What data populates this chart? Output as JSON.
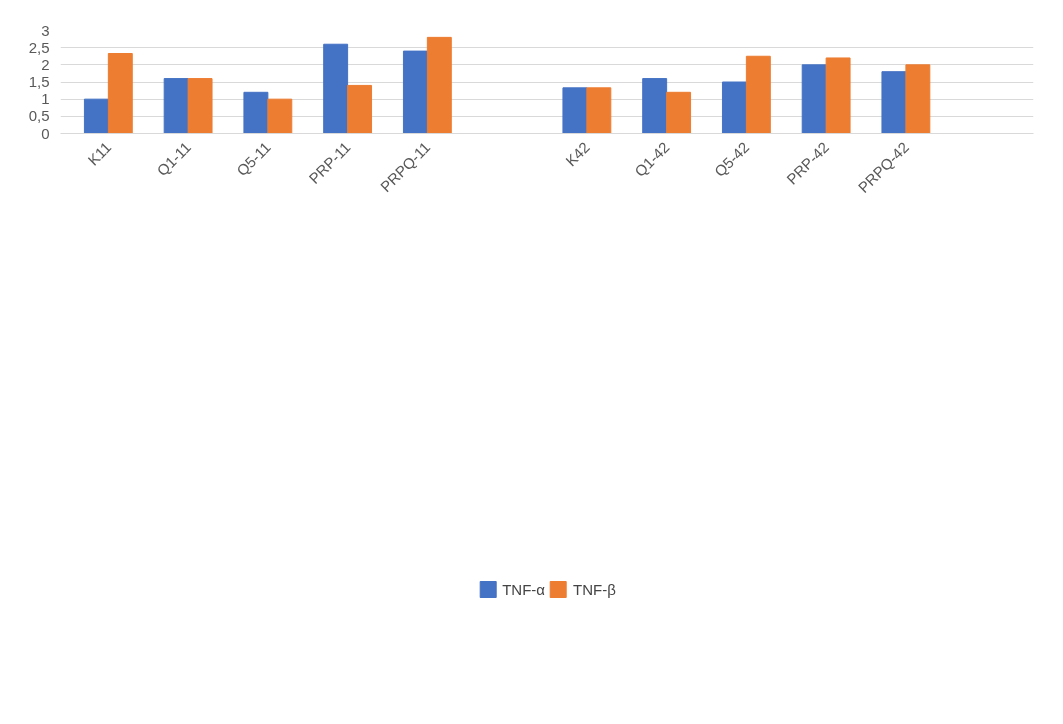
{
  "chart_data": {
    "type": "bar",
    "categories": [
      "K11",
      "Q1-11",
      "Q5-11",
      "PRP-11",
      "PRPQ-11",
      null,
      "K42",
      "Q1-42",
      "Q5-42",
      "PRP-42",
      "PRPQ-42",
      null
    ],
    "series": [
      {
        "name": "TNF-α",
        "color": "#4472c4",
        "values": [
          1.0,
          1.6,
          1.2,
          2.6,
          2.4,
          null,
          1.33,
          1.6,
          1.5,
          2.0,
          1.8,
          null
        ]
      },
      {
        "name": "TNF-β",
        "color": "#ed7d31",
        "values": [
          2.33,
          1.6,
          1.0,
          1.4,
          2.8,
          null,
          1.33,
          1.2,
          2.25,
          2.2,
          2.0,
          null
        ]
      }
    ],
    "ylim": [
      0,
      3
    ],
    "yticks": [
      0,
      {
        "value": 0.5,
        "label": "0,5"
      },
      1,
      {
        "value": 1.5,
        "label": "1,5"
      },
      2,
      {
        "value": 2.5,
        "label": "2,5"
      },
      3
    ],
    "grid": "y",
    "legend": "bottom"
  }
}
